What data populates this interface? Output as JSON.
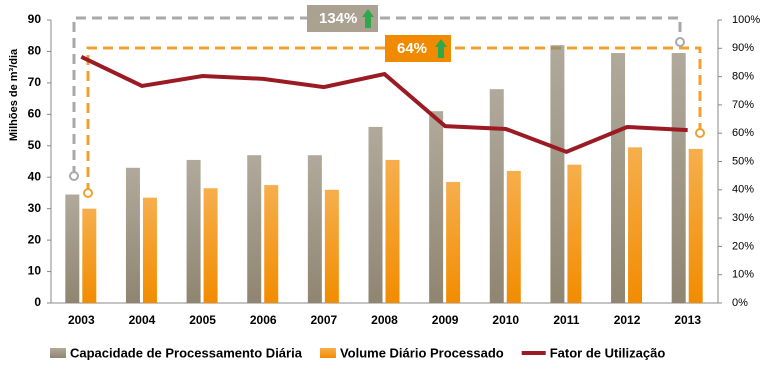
{
  "chart_data": {
    "type": "bar",
    "y_label": "Milhões de m³/dia",
    "categories": [
      "2003",
      "2004",
      "2005",
      "2006",
      "2007",
      "2008",
      "2009",
      "2010",
      "2011",
      "2012",
      "2013"
    ],
    "series": [
      {
        "name": "Capacidade de Processamento Diária",
        "color": "#8f8571",
        "values": [
          34.5,
          43,
          45.5,
          47,
          47,
          56,
          61,
          68,
          82,
          79.5,
          79.5
        ]
      },
      {
        "name": "Volume Diário Processado",
        "color": "#f28c00",
        "values": [
          30,
          33.5,
          36.5,
          37.5,
          36,
          45.5,
          38.5,
          42,
          44,
          49.5,
          49
        ]
      },
      {
        "name": "Fator de Utilização",
        "color": "#9b1b25",
        "type": "line",
        "axis": "y2",
        "values": [
          87,
          76.7,
          80.2,
          79.2,
          76.3,
          80.9,
          62.5,
          61.5,
          53.4,
          62.2,
          61.1
        ]
      }
    ],
    "ylim": [
      0,
      90
    ],
    "yticks": [
      0,
      10,
      20,
      30,
      40,
      50,
      60,
      70,
      80,
      90
    ],
    "y2lim": [
      0,
      100
    ],
    "y2ticks": [
      {
        "value": 0,
        "label": "0%"
      },
      {
        "value": 10,
        "label": "10%"
      },
      {
        "value": 20,
        "label": "20%"
      },
      {
        "value": 30,
        "label": "30%"
      },
      {
        "value": 40,
        "label": "40%"
      },
      {
        "value": 50,
        "label": "50%"
      },
      {
        "value": 60,
        "label": "60%"
      },
      {
        "value": 70,
        "label": "70%"
      },
      {
        "value": 80,
        "label": "80%"
      },
      {
        "value": 90,
        "label": "90%"
      },
      {
        "value": 100,
        "label": "100%"
      }
    ],
    "annotations": [
      "134%",
      "64%"
    ],
    "legend": "bottom"
  }
}
